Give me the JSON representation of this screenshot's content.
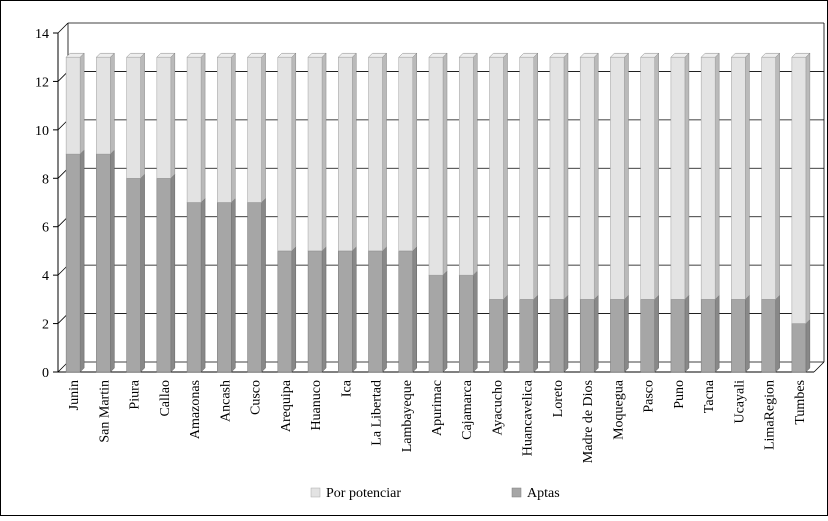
{
  "chart_data": {
    "type": "bar",
    "stacked": true,
    "style": "3d",
    "grid": true,
    "legend_position": "bottom",
    "ylim": [
      0,
      14
    ],
    "yticks": [
      0,
      2,
      4,
      6,
      8,
      10,
      12,
      14
    ],
    "categories": [
      "Junin",
      "San Martin",
      "Piura",
      "Callao",
      "Amazonas",
      "Ancash",
      "Cusco",
      "Arequipa",
      "Huanuco",
      "Ica",
      "La Libertad",
      "Lambayeque",
      "Apurimac",
      "Cajamarca",
      "Ayacucho",
      "Huancavelica",
      "Loreto",
      "Madre de Dios",
      "Moquegua",
      "Pasco",
      "Puno",
      "Tacna",
      "Ucayali",
      "LimaRegion",
      "Tumbes"
    ],
    "series": [
      {
        "name": "Aptas",
        "color": "#a6a6a6",
        "values": [
          9,
          9,
          8,
          8,
          7,
          7,
          7,
          5,
          5,
          5,
          5,
          5,
          4,
          4,
          3,
          3,
          3,
          3,
          3,
          3,
          3,
          3,
          3,
          3,
          2
        ]
      },
      {
        "name": "Por potenciar",
        "color": "#e3e3e3",
        "values": [
          4,
          4,
          5,
          5,
          6,
          6,
          6,
          8,
          8,
          8,
          8,
          8,
          9,
          9,
          10,
          10,
          10,
          10,
          10,
          10,
          10,
          10,
          10,
          10,
          11
        ]
      }
    ],
    "legend_order": [
      "Por potenciar",
      "Aptas"
    ]
  }
}
